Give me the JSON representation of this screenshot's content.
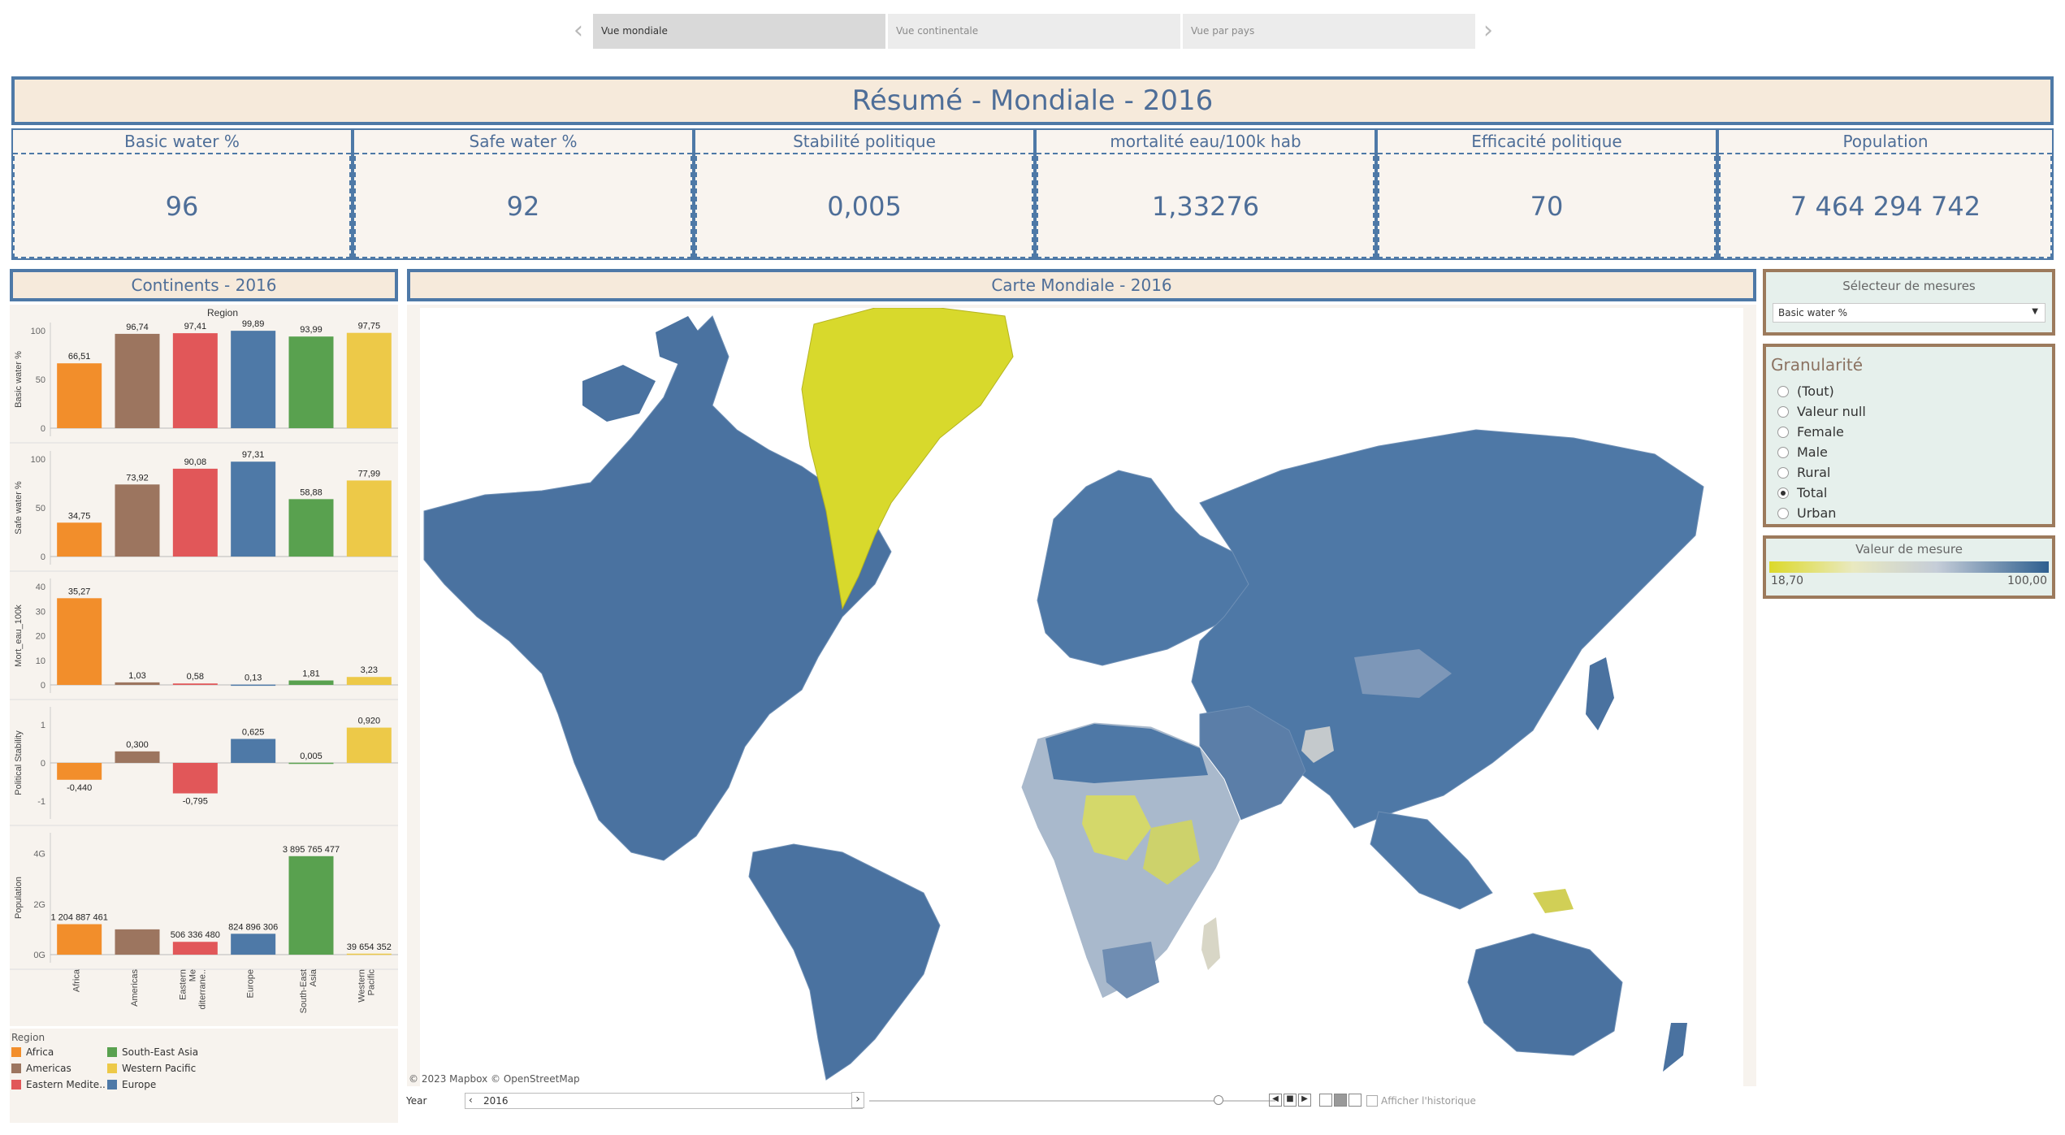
{
  "story": {
    "tabs": [
      {
        "label": "Vue mondiale",
        "active": true
      },
      {
        "label": "Vue continentale",
        "active": false
      },
      {
        "label": "Vue par pays",
        "active": false
      }
    ]
  },
  "title": "Résumé - Mondiale - 2016",
  "kpis": [
    {
      "label": "Basic water %",
      "value": "96"
    },
    {
      "label": "Safe water %",
      "value": "92"
    },
    {
      "label": "Stabilité politique",
      "value": "0,005"
    },
    {
      "label": "mortalité eau/100k hab",
      "value": "1,33276"
    },
    {
      "label": "Efficacité politique",
      "value": "70"
    },
    {
      "label": "Population",
      "value": "7 464 294 742"
    }
  ],
  "continents_panel": {
    "title": "Continents - 2016",
    "region_header": "Region"
  },
  "map_panel": {
    "title": "Carte Mondiale - 2016",
    "attribution": "© 2023 Mapbox © OpenStreetMap"
  },
  "measure_selector": {
    "title": "Sélecteur de mesures",
    "selected": "Basic water %"
  },
  "granularity": {
    "title": "Granularité",
    "options": [
      {
        "label": "(Tout)",
        "checked": false
      },
      {
        "label": "Valeur null",
        "checked": false
      },
      {
        "label": "Female",
        "checked": false
      },
      {
        "label": "Male",
        "checked": false
      },
      {
        "label": "Rural",
        "checked": false
      },
      {
        "label": "Total",
        "checked": true
      },
      {
        "label": "Urban",
        "checked": false
      }
    ]
  },
  "measure_value": {
    "title": "Valeur de mesure",
    "min": "18,70",
    "max": "100,00",
    "color_low": "#dcd92a",
    "color_high": "#2e5f8f"
  },
  "year_filter": {
    "label": "Year",
    "value": "2016",
    "history_label": "Afficher l'historique"
  },
  "legend": {
    "title": "Region",
    "items": [
      {
        "label": "Africa",
        "color": "#f28e2b"
      },
      {
        "label": "South-East Asia",
        "color": "#59a14f"
      },
      {
        "label": "Americas",
        "color": "#9c755f"
      },
      {
        "label": "Western Pacific",
        "color": "#edc948"
      },
      {
        "label": "Eastern Medite..",
        "color": "#e15759"
      },
      {
        "label": "Europe",
        "color": "#4e79a7"
      }
    ]
  },
  "chart_data": {
    "type": "bar",
    "categories": [
      "Africa",
      "Americas",
      "Eastern Me diterrane..",
      "Europe",
      "South-East Asia",
      "Western Pacific"
    ],
    "colors": [
      "#f28e2b",
      "#9c755f",
      "#e15759",
      "#4e79a7",
      "#59a14f",
      "#edc948"
    ],
    "panels": [
      {
        "ylabel": "Basic water %",
        "ticks": [
          "0",
          "50",
          "100"
        ],
        "ylim": [
          0,
          100
        ],
        "values": [
          66.51,
          96.74,
          97.41,
          99.89,
          93.99,
          97.75
        ],
        "labels": [
          "66,51",
          "96,74",
          "97,41",
          "99,89",
          "93,99",
          "97,75"
        ]
      },
      {
        "ylabel": "Safe water %",
        "ticks": [
          "0",
          "50",
          "100"
        ],
        "ylim": [
          0,
          100
        ],
        "values": [
          34.75,
          73.92,
          90.08,
          97.31,
          58.88,
          77.99
        ],
        "labels": [
          "34,75",
          "73,92",
          "90,08",
          "97,31",
          "58,88",
          "77,99"
        ]
      },
      {
        "ylabel": "Mort_eau_100k",
        "ticks": [
          "0",
          "10",
          "20",
          "30",
          "40"
        ],
        "ylim": [
          0,
          40
        ],
        "values": [
          35.27,
          1.03,
          0.58,
          0.13,
          1.81,
          3.23
        ],
        "labels": [
          "35,27",
          "1,03",
          "0,58",
          "0,13",
          "1,81",
          "3,23"
        ]
      },
      {
        "ylabel": "Political Stability",
        "ticks": [
          "-1",
          "0",
          "1"
        ],
        "ylim": [
          -1.25,
          1.25
        ],
        "values": [
          -0.44,
          0.3,
          -0.795,
          0.625,
          0.005,
          0.92
        ],
        "labels": [
          "-0,440",
          "0,300",
          "-0,795",
          "0,625",
          "0,005",
          "0,920"
        ]
      },
      {
        "ylabel": "Population",
        "ticks": [
          "0G",
          "2G",
          "4G"
        ],
        "ylim": [
          0,
          4500000000
        ],
        "values": [
          1204887461,
          1000000000,
          506336480,
          824896306,
          3895765477,
          39654352
        ],
        "labels": [
          "1 204 887 461",
          "",
          "506 336 480",
          "824 896 306",
          "3 895 765 477",
          "39 654 352"
        ]
      }
    ]
  }
}
